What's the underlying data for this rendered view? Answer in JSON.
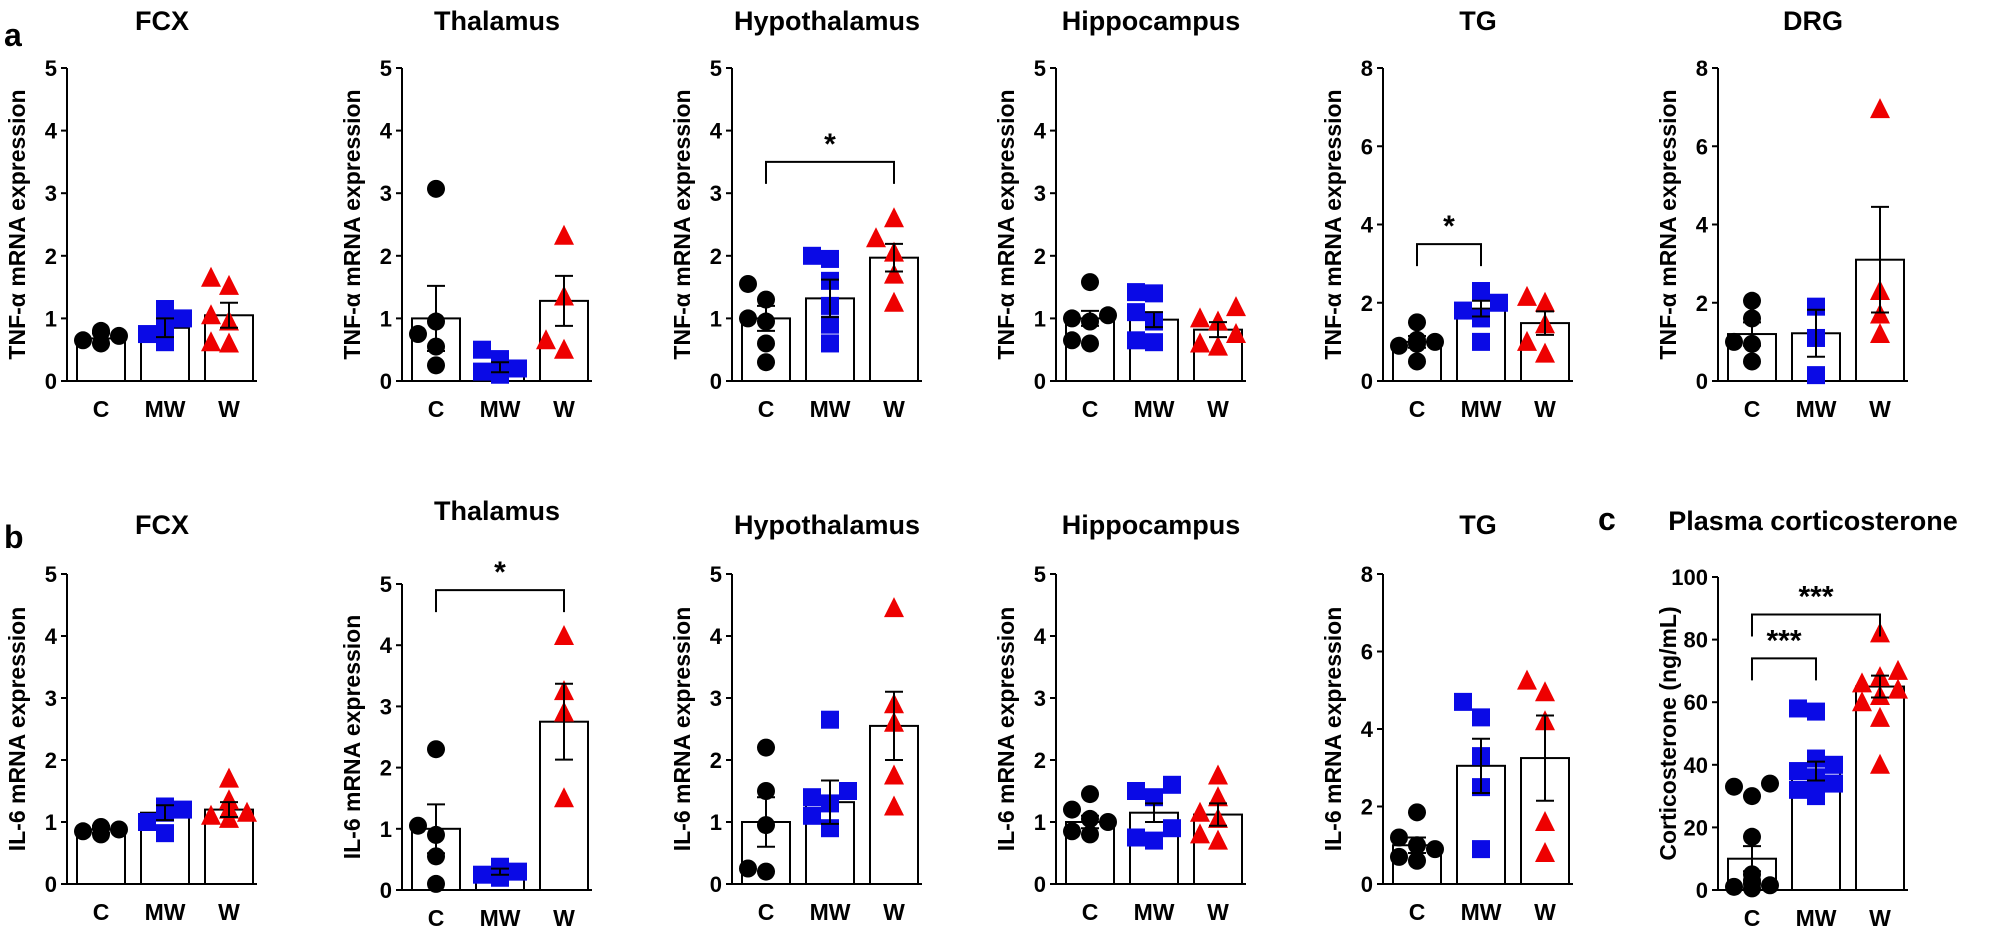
{
  "panel_labels": [
    "a",
    "b",
    "c"
  ],
  "groups": [
    "C",
    "MW",
    "W"
  ],
  "colors": {
    "C": "#000000",
    "MW": "#0a0ae6",
    "W": "#ee0000"
  },
  "markers": {
    "C": "circle",
    "MW": "square",
    "W": "triangle"
  },
  "chart_data": [
    {
      "type": "bar",
      "panel": "a",
      "title": "FCX",
      "ylabel": "TNF-α mRNA expression",
      "categories": [
        "C",
        "MW",
        "W"
      ],
      "ylim": [
        0,
        5
      ],
      "yticks": [
        0,
        1,
        2,
        3,
        4,
        5
      ],
      "means": [
        0.68,
        0.85,
        1.05
      ],
      "sem": [
        0.08,
        0.15,
        0.2
      ],
      "points": {
        "C": [
          0.6,
          0.65,
          0.72,
          0.78,
          0.8
        ],
        "MW": [
          0.62,
          0.75,
          0.88,
          1.0,
          1.15
        ],
        "W": [
          0.6,
          0.62,
          0.95,
          1.05,
          1.52,
          1.65
        ]
      },
      "significance": []
    },
    {
      "type": "bar",
      "panel": "a",
      "title": "Thalamus",
      "ylabel": "TNF-α mRNA expression",
      "categories": [
        "C",
        "MW",
        "W"
      ],
      "ylim": [
        0,
        5
      ],
      "yticks": [
        0,
        1,
        2,
        3,
        4,
        5
      ],
      "means": [
        1.0,
        0.22,
        1.28
      ],
      "sem": [
        0.52,
        0.08,
        0.4
      ],
      "points": {
        "C": [
          0.25,
          0.55,
          0.75,
          0.95,
          3.07
        ],
        "MW": [
          0.1,
          0.15,
          0.2,
          0.35,
          0.5
        ],
        "W": [
          0.5,
          0.65,
          1.35,
          2.32
        ]
      },
      "significance": []
    },
    {
      "type": "bar",
      "panel": "a",
      "title": "Hypothalamus",
      "ylabel": "TNF-α mRNA expression",
      "categories": [
        "C",
        "MW",
        "W"
      ],
      "ylim": [
        0,
        5
      ],
      "yticks": [
        0,
        1,
        2,
        3,
        4,
        5
      ],
      "means": [
        1.0,
        1.32,
        1.97
      ],
      "sem": [
        0.2,
        0.3,
        0.22
      ],
      "points": {
        "C": [
          0.3,
          0.6,
          0.95,
          1.0,
          1.3,
          1.55
        ],
        "MW": [
          0.6,
          0.9,
          1.2,
          1.6,
          1.95,
          2.0
        ],
        "W": [
          1.25,
          1.7,
          2.05,
          2.28,
          2.6
        ]
      },
      "significance": [
        {
          "from": "C",
          "to": "W",
          "label": "*",
          "y": 3.5
        }
      ]
    },
    {
      "type": "bar",
      "panel": "a",
      "title": "Hippocampus",
      "ylabel": "TNF-α mRNA expression",
      "categories": [
        "C",
        "MW",
        "W"
      ],
      "ylim": [
        0,
        5
      ],
      "yticks": [
        0,
        1,
        2,
        3,
        4,
        5
      ],
      "means": [
        1.0,
        0.98,
        0.82
      ],
      "sem": [
        0.12,
        0.12,
        0.12
      ],
      "points": {
        "C": [
          0.6,
          0.65,
          0.95,
          1.0,
          1.05,
          1.58
        ],
        "MW": [
          0.62,
          0.65,
          0.95,
          1.1,
          1.4,
          1.42
        ],
        "W": [
          0.55,
          0.6,
          0.75,
          0.95,
          1.0,
          1.18
        ]
      },
      "significance": []
    },
    {
      "type": "bar",
      "panel": "a",
      "title": "TG",
      "ylabel": "TNF-α mRNA expression",
      "categories": [
        "C",
        "MW",
        "W"
      ],
      "ylim": [
        0,
        8
      ],
      "yticks": [
        0,
        2,
        4,
        6,
        8
      ],
      "means": [
        1.0,
        1.85,
        1.48
      ],
      "sem": [
        0.15,
        0.2,
        0.3
      ],
      "points": {
        "C": [
          0.5,
          0.9,
          0.95,
          1.0,
          1.05,
          1.5
        ],
        "MW": [
          1.0,
          1.6,
          1.8,
          2.0,
          2.3
        ],
        "W": [
          0.7,
          1.0,
          1.45,
          2.0,
          2.15
        ]
      },
      "significance": [
        {
          "from": "C",
          "to": "MW",
          "label": "*",
          "y": 3.5
        }
      ]
    },
    {
      "type": "bar",
      "panel": "a",
      "title": "DRG",
      "ylabel": "TNF-α mRNA expression",
      "categories": [
        "C",
        "MW",
        "W"
      ],
      "ylim": [
        0,
        8
      ],
      "yticks": [
        0,
        2,
        4,
        6,
        8
      ],
      "means": [
        1.2,
        1.22,
        3.1
      ],
      "sem": [
        0.3,
        0.6,
        1.35
      ],
      "points": {
        "C": [
          0.5,
          0.95,
          1.0,
          1.6,
          2.05
        ],
        "MW": [
          0.15,
          1.1,
          1.9
        ],
        "W": [
          1.2,
          1.7,
          2.3,
          6.95
        ]
      },
      "significance": []
    },
    {
      "type": "bar",
      "panel": "b",
      "title": "FCX",
      "ylabel": "IL-6 mRNA expression",
      "categories": [
        "C",
        "MW",
        "W"
      ],
      "ylim": [
        0,
        5
      ],
      "yticks": [
        0,
        1,
        2,
        3,
        4,
        5
      ],
      "means": [
        0.88,
        1.15,
        1.2
      ],
      "sem": [
        0.06,
        0.12,
        0.12
      ],
      "points": {
        "C": [
          0.8,
          0.85,
          0.88,
          0.9,
          0.92
        ],
        "MW": [
          0.82,
          1.0,
          1.15,
          1.2,
          1.25
        ],
        "W": [
          1.05,
          1.1,
          1.15,
          1.2,
          1.35,
          1.7
        ]
      },
      "significance": []
    },
    {
      "type": "bar",
      "panel": "b",
      "title": "Thalamus",
      "ylabel": "IL-6 mRNA expression",
      "categories": [
        "C",
        "MW",
        "W"
      ],
      "ylim": [
        0,
        5
      ],
      "yticks": [
        0,
        1,
        2,
        3,
        4,
        5
      ],
      "means": [
        1.0,
        0.3,
        2.75
      ],
      "sem": [
        0.4,
        0.05,
        0.62
      ],
      "points": {
        "C": [
          0.1,
          0.55,
          0.9,
          1.05,
          2.3
        ],
        "MW": [
          0.2,
          0.25,
          0.3,
          0.35,
          0.38
        ],
        "W": [
          1.5,
          2.9,
          3.25,
          4.15
        ]
      },
      "significance": [
        {
          "from": "C",
          "to": "W",
          "label": "*",
          "y": 4.9
        }
      ]
    },
    {
      "type": "bar",
      "panel": "b",
      "title": "Hypothalamus",
      "ylabel": "IL-6 mRNA expression",
      "categories": [
        "C",
        "MW",
        "W"
      ],
      "ylim": [
        0,
        5
      ],
      "yticks": [
        0,
        1,
        2,
        3,
        4,
        5
      ],
      "means": [
        1.0,
        1.32,
        2.55
      ],
      "sem": [
        0.4,
        0.35,
        0.55
      ],
      "points": {
        "C": [
          0.2,
          0.25,
          0.95,
          1.5,
          2.2
        ],
        "MW": [
          0.9,
          1.1,
          1.3,
          1.4,
          1.5,
          2.65
        ],
        "W": [
          1.25,
          1.75,
          2.6,
          2.9,
          4.45
        ]
      },
      "significance": []
    },
    {
      "type": "bar",
      "panel": "b",
      "title": "Hippocampus",
      "ylabel": "IL-6 mRNA expression",
      "categories": [
        "C",
        "MW",
        "W"
      ],
      "ylim": [
        0,
        5
      ],
      "yticks": [
        0,
        1,
        2,
        3,
        4,
        5
      ],
      "means": [
        1.0,
        1.15,
        1.12
      ],
      "sem": [
        0.1,
        0.15,
        0.18
      ],
      "points": {
        "C": [
          0.8,
          0.85,
          1.0,
          1.05,
          1.2,
          1.45
        ],
        "MW": [
          0.7,
          0.75,
          0.9,
          1.4,
          1.5,
          1.6
        ],
        "W": [
          0.7,
          0.8,
          1.05,
          1.15,
          1.4,
          1.75
        ]
      },
      "significance": []
    },
    {
      "type": "bar",
      "panel": "b",
      "title": "TG",
      "ylabel": "IL-6 mRNA expression",
      "categories": [
        "C",
        "MW",
        "W"
      ],
      "ylim": [
        0,
        8
      ],
      "yticks": [
        0,
        2,
        4,
        6,
        8
      ],
      "means": [
        1.0,
        3.05,
        3.25
      ],
      "sem": [
        0.2,
        0.7,
        1.1
      ],
      "points": {
        "C": [
          0.6,
          0.7,
          0.9,
          1.0,
          1.2,
          1.85
        ],
        "MW": [
          0.9,
          2.5,
          3.3,
          4.3,
          4.7
        ],
        "W": [
          0.8,
          1.6,
          4.2,
          4.95,
          5.25
        ]
      },
      "significance": []
    },
    {
      "type": "bar",
      "panel": "c",
      "title": "Plasma corticosterone",
      "ylabel": "Corticosterone (ng/mL)",
      "categories": [
        "C",
        "MW",
        "W"
      ],
      "ylim": [
        0,
        100
      ],
      "yticks": [
        0,
        20,
        40,
        60,
        80,
        100
      ],
      "means": [
        10,
        38,
        65
      ],
      "sem": [
        4,
        3,
        3.5
      ],
      "points": {
        "C": [
          0.5,
          1,
          1.5,
          2,
          3,
          5,
          17,
          30,
          33,
          34
        ],
        "MW": [
          30,
          32,
          34,
          35,
          36,
          38,
          40,
          42,
          57,
          58
        ],
        "W": [
          40,
          55,
          60,
          62,
          64,
          66,
          68,
          70,
          82
        ]
      },
      "significance": [
        {
          "from": "C",
          "to": "MW",
          "label": "***",
          "y": 74
        },
        {
          "from": "C",
          "to": "W",
          "label": "***",
          "y": 88
        }
      ]
    }
  ]
}
